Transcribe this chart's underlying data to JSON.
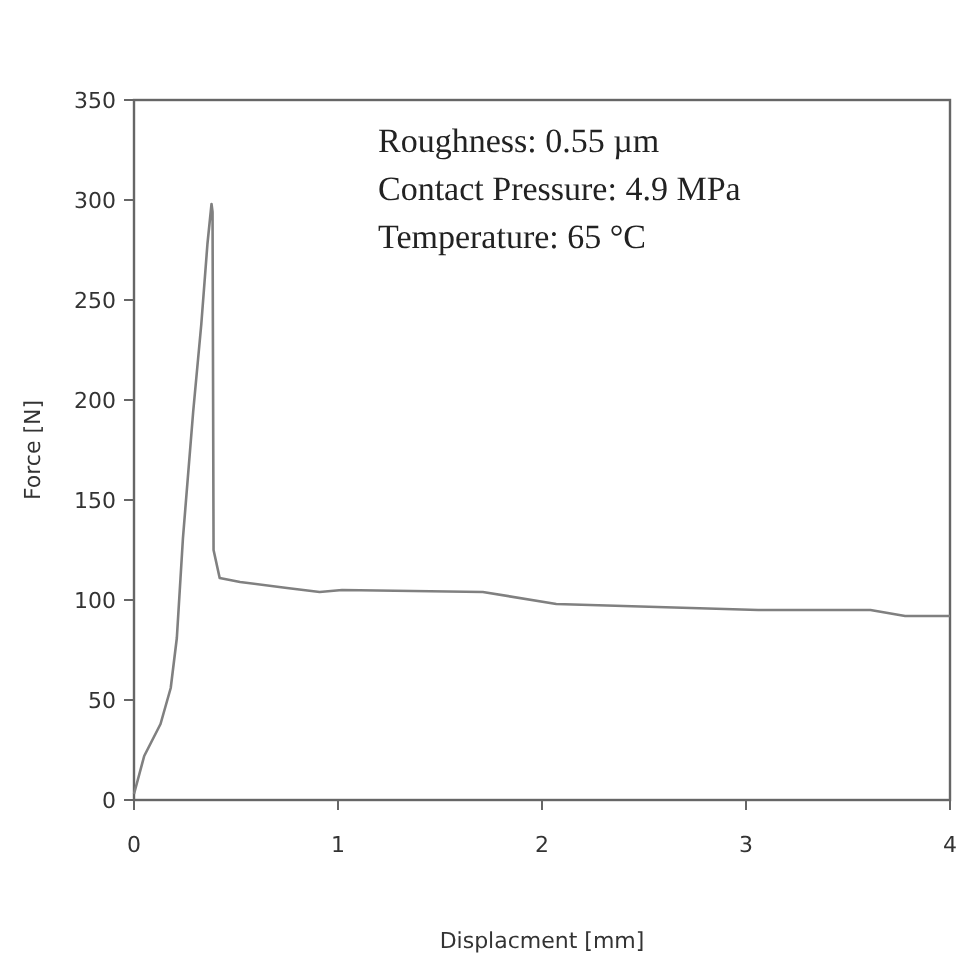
{
  "chart_data": {
    "type": "line",
    "xlabel": "Displacment [mm]",
    "ylabel": "Force [N]",
    "annotations": [
      "Roughness: 0.55 µm",
      "Contact Pressure: 4.9 MPa",
      "Temperature: 65 °C"
    ],
    "xlim": [
      0,
      4
    ],
    "ylim": [
      0,
      350
    ],
    "xticks": [
      0,
      1,
      2,
      3,
      4
    ],
    "yticks": [
      0,
      50,
      100,
      150,
      200,
      250,
      300,
      350
    ],
    "grid": false,
    "marker": "none",
    "line_style": "solid",
    "series": [
      {
        "color": "#808080",
        "x": [
          0,
          0.05,
          0.13,
          0.18,
          0.21,
          0.24,
          0.29,
          0.33,
          0.36,
          0.38,
          0.385,
          0.39,
          0.42,
          0.52,
          0.75,
          0.91,
          1.02,
          1.71,
          2.07,
          2.4,
          3.06,
          3.61,
          3.78,
          4.0
        ],
        "values": [
          3,
          22,
          38,
          56,
          81,
          131,
          194,
          238,
          278,
          298,
          294,
          125,
          111,
          109,
          106,
          104,
          105,
          104,
          98,
          97,
          95,
          95,
          92,
          92
        ]
      }
    ]
  }
}
